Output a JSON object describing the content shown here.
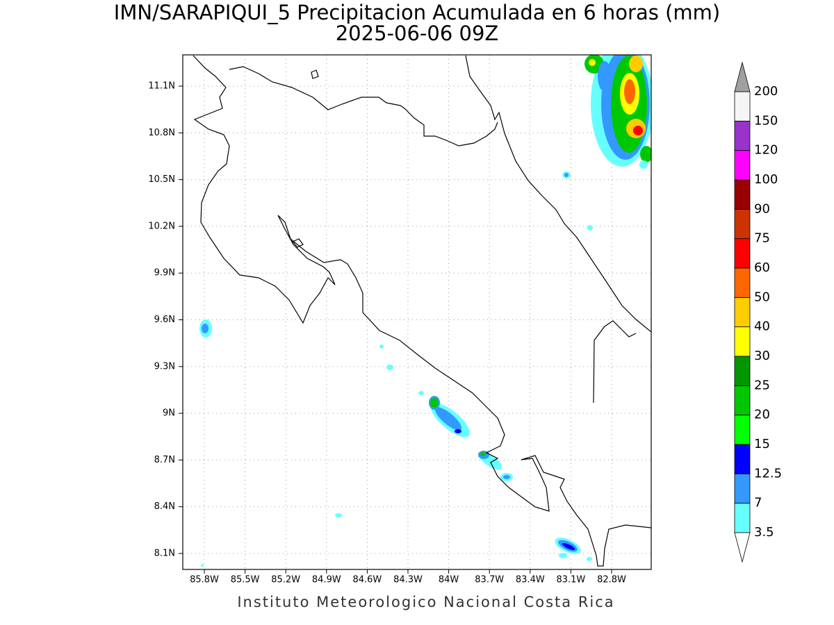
{
  "header": {
    "title": "IMN/SARAPIQUI_5 Precipitacion Acumulada en 6 horas (mm)",
    "subtitle": "2025-06-06 09Z"
  },
  "map": {
    "lon_labels": [
      "85.8W",
      "85.5W",
      "85.2W",
      "84.9W",
      "84.6W",
      "84.3W",
      "84W",
      "83.7W",
      "83.4W",
      "83.1W",
      "82.8W"
    ],
    "lat_labels": [
      "11.1N",
      "10.8N",
      "10.5N",
      "10.2N",
      "9.9N",
      "9.6N",
      "9.3N",
      "9N",
      "8.7N",
      "8.4N",
      "8.1N"
    ]
  },
  "colorbar": {
    "labels": [
      "3.5",
      "7",
      "12.5",
      "15",
      "20",
      "25",
      "30",
      "40",
      "50",
      "60",
      "75",
      "90",
      "100",
      "120",
      "150",
      "200"
    ],
    "colors": [
      "#66ffff",
      "#3399ff",
      "#0000ff",
      "#00ff00",
      "#00c800",
      "#009600",
      "#ffff00",
      "#ffcc00",
      "#ff6600",
      "#ff0000",
      "#cc3300",
      "#990000",
      "#ff00ff",
      "#9933cc",
      "#f5f5f5"
    ],
    "under_color": "#ffffff",
    "over_color": "#a0a0a0"
  },
  "footer": {
    "text": "Instituto Meteorologico Nacional Costa Rica"
  }
}
